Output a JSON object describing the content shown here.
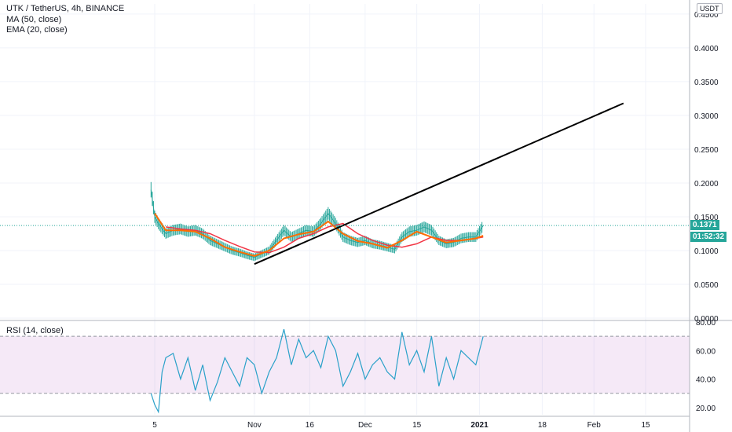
{
  "header": {
    "symbol_line": "UTK / TetherUS, 4h, BINANCE",
    "ma_line": "MA (50, close)",
    "ema_line": "EMA (20, close)",
    "currency": "USDT",
    "rsi_line": "RSI (14, close)",
    "last_price": "0.1371",
    "countdown": "01:52:32"
  },
  "colors": {
    "candle": "#26a69a",
    "ma": "#f23645",
    "ema": "#ff6d00",
    "trendline": "#000000",
    "rsi_line": "#2aa1c9",
    "rsi_band": "#9c27b0",
    "price_tag": "#26a69a",
    "countdown_tag": "#26a69a"
  },
  "chart_data": [
    {
      "type": "line",
      "name": "price",
      "yticks": [
        "0.4500",
        "0.4000",
        "0.3500",
        "0.3000",
        "0.2500",
        "0.2000",
        "0.1500",
        "0.1000",
        "0.0500",
        "0.0000"
      ],
      "ylim": [
        0,
        0.465
      ],
      "xticks": [
        "5",
        "Nov",
        "16",
        "Dec",
        "15",
        "2021",
        "18",
        "Feb",
        "15"
      ],
      "close": {
        "x": [
          "Oct 4",
          "Oct 5",
          "Oct 6",
          "Oct 8",
          "Oct 10",
          "Oct 12",
          "Oct 14",
          "Oct 16",
          "Oct 18",
          "Oct 20",
          "Oct 22",
          "Oct 24",
          "Oct 26",
          "Oct 28",
          "Oct 30",
          "Nov 1",
          "Nov 3",
          "Nov 5",
          "Nov 7",
          "Nov 9",
          "Nov 11",
          "Nov 13",
          "Nov 15",
          "Nov 17",
          "Nov 19",
          "Nov 21",
          "Nov 23",
          "Nov 25",
          "Nov 27",
          "Nov 29",
          "Dec 1",
          "Dec 3",
          "Dec 5",
          "Dec 7",
          "Dec 9",
          "Dec 11",
          "Dec 13",
          "Dec 15",
          "Dec 17",
          "Dec 19",
          "Dec 21",
          "Dec 23",
          "Dec 25",
          "Dec 27",
          "Dec 29",
          "Dec 31",
          "Jan 2"
        ],
        "y": [
          0.19,
          0.15,
          0.14,
          0.125,
          0.13,
          0.132,
          0.128,
          0.13,
          0.125,
          0.115,
          0.11,
          0.105,
          0.1,
          0.097,
          0.093,
          0.09,
          0.095,
          0.1,
          0.115,
          0.13,
          0.12,
          0.125,
          0.13,
          0.128,
          0.14,
          0.155,
          0.14,
          0.12,
          0.115,
          0.112,
          0.115,
          0.11,
          0.108,
          0.105,
          0.102,
          0.12,
          0.128,
          0.13,
          0.135,
          0.13,
          0.115,
          0.11,
          0.112,
          0.118,
          0.12,
          0.12,
          0.137
        ]
      },
      "ma50": {
        "x": [
          "Oct 8",
          "Oct 12",
          "Oct 16",
          "Oct 20",
          "Oct 24",
          "Oct 28",
          "Nov 1",
          "Nov 5",
          "Nov 9",
          "Nov 13",
          "Nov 17",
          "Nov 21",
          "Nov 25",
          "Nov 29",
          "Dec 3",
          "Dec 7",
          "Dec 11",
          "Dec 15",
          "Dec 19",
          "Dec 23",
          "Dec 27",
          "Dec 31",
          "Jan 2"
        ],
        "y": [
          0.135,
          0.132,
          0.13,
          0.125,
          0.115,
          0.106,
          0.098,
          0.097,
          0.105,
          0.118,
          0.125,
          0.135,
          0.14,
          0.125,
          0.115,
          0.108,
          0.105,
          0.11,
          0.12,
          0.115,
          0.115,
          0.118,
          0.12
        ]
      },
      "ema20": {
        "x": [
          "Oct 5",
          "Oct 8",
          "Oct 12",
          "Oct 16",
          "Oct 20",
          "Oct 24",
          "Oct 28",
          "Nov 1",
          "Nov 5",
          "Nov 9",
          "Nov 13",
          "Nov 17",
          "Nov 21",
          "Nov 25",
          "Nov 29",
          "Dec 3",
          "Dec 7",
          "Dec 11",
          "Dec 15",
          "Dec 19",
          "Dec 23",
          "Dec 27",
          "Dec 31",
          "Jan 2"
        ],
        "y": [
          0.155,
          0.13,
          0.13,
          0.128,
          0.118,
          0.105,
          0.098,
          0.092,
          0.1,
          0.118,
          0.124,
          0.128,
          0.143,
          0.125,
          0.114,
          0.11,
          0.104,
          0.115,
          0.128,
          0.12,
          0.112,
          0.115,
          0.118,
          0.122
        ]
      },
      "trendline": {
        "x": [
          "Nov 1",
          "Feb 9"
        ],
        "y": [
          0.08,
          0.318
        ]
      }
    },
    {
      "type": "line",
      "name": "rsi",
      "yticks": [
        "80.00",
        "60.00",
        "40.00",
        "20.00"
      ],
      "ylim": [
        15,
        80
      ],
      "band": [
        30,
        70
      ],
      "x": [
        "Oct 4",
        "Oct 5",
        "Oct 6",
        "Oct 7",
        "Oct 8",
        "Oct 10",
        "Oct 12",
        "Oct 14",
        "Oct 16",
        "Oct 18",
        "Oct 20",
        "Oct 22",
        "Oct 24",
        "Oct 26",
        "Oct 28",
        "Oct 30",
        "Nov 1",
        "Nov 3",
        "Nov 5",
        "Nov 7",
        "Nov 9",
        "Nov 11",
        "Nov 13",
        "Nov 15",
        "Nov 17",
        "Nov 19",
        "Nov 21",
        "Nov 23",
        "Nov 25",
        "Nov 27",
        "Nov 29",
        "Dec 1",
        "Dec 3",
        "Dec 5",
        "Dec 7",
        "Dec 9",
        "Dec 11",
        "Dec 13",
        "Dec 15",
        "Dec 17",
        "Dec 19",
        "Dec 21",
        "Dec 23",
        "Dec 25",
        "Dec 27",
        "Dec 29",
        "Dec 31",
        "Jan 2"
      ],
      "y": [
        30,
        22,
        17,
        45,
        55,
        58,
        40,
        55,
        32,
        50,
        25,
        38,
        55,
        45,
        35,
        55,
        50,
        30,
        45,
        55,
        75,
        50,
        68,
        55,
        60,
        48,
        70,
        60,
        35,
        45,
        58,
        40,
        50,
        55,
        45,
        40,
        73,
        50,
        60,
        45,
        70,
        35,
        55,
        40,
        60,
        55,
        50,
        70
      ]
    }
  ]
}
